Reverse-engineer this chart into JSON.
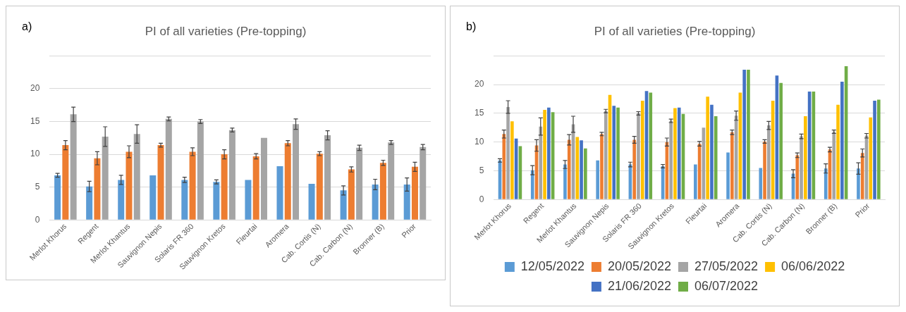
{
  "chart_data": [
    {
      "type": "bar",
      "title": "PI of all varieties (Pre-topping)",
      "annotations": [
        "a)"
      ],
      "categories": [
        "Merlot Khorus",
        "Regent",
        "Merlot Khantus",
        "Sauvignon Nepis",
        "Solaris FR 360",
        "Sauvignon Kretos",
        "Fleurtai",
        "Aromera",
        "Cab. Cortis (N)",
        "Cab. Carbon (N)",
        "Bronner (B)",
        "Prior"
      ],
      "series": [
        {
          "color": "#5b9bd5",
          "values": [
            6.8,
            5.1,
            6.1,
            6.8,
            6.1,
            5.8,
            6.1,
            8.2,
            5.5,
            4.5,
            5.4,
            5.4
          ],
          "errors": [
            0.3,
            0.8,
            0.7,
            null,
            0.4,
            0.3,
            null,
            null,
            null,
            0.7,
            0.8,
            1.0
          ]
        },
        {
          "color": "#ed7d31",
          "values": [
            11.4,
            9.4,
            10.4,
            11.4,
            10.4,
            10.0,
            9.7,
            11.7,
            10.1,
            7.7,
            8.7,
            8.1
          ],
          "errors": [
            0.7,
            1.0,
            0.9,
            0.3,
            0.6,
            0.7,
            0.4,
            0.4,
            0.3,
            0.4,
            0.4,
            0.7
          ]
        },
        {
          "color": "#a5a5a5",
          "values": [
            16.1,
            12.7,
            13.1,
            15.4,
            15.0,
            13.7,
            12.5,
            14.6,
            12.9,
            11.0,
            11.8,
            11.1
          ],
          "errors": [
            1.1,
            1.5,
            1.4,
            0.3,
            0.3,
            0.3,
            null,
            0.8,
            0.7,
            0.4,
            0.3,
            0.4
          ]
        }
      ],
      "ylim": [
        0,
        25
      ],
      "yticks": [
        0,
        5,
        10,
        15,
        20,
        {
          "value": 25,
          "label": null
        }
      ],
      "grid": "y",
      "legend": false
    },
    {
      "type": "bar",
      "title": "PI of all varieties (Pre-topping)",
      "annotations": [
        "b)"
      ],
      "categories": [
        "Merlot Khorus",
        "Regent",
        "Merlot Khantus",
        "Sauvignon Nepis",
        "Solaris FR 360",
        "Sauvignon Kretos",
        "Fleurtai",
        "Aromera",
        "Cab. Cortis (N)",
        "Cab. Carbon (N)",
        "Bronner (B)",
        "Prior"
      ],
      "series": [
        {
          "name": "12/05/2022",
          "color": "#5b9bd5",
          "values": [
            6.8,
            5.1,
            6.1,
            6.8,
            6.1,
            5.8,
            6.1,
            8.2,
            5.5,
            4.5,
            5.4,
            5.4
          ],
          "errors": [
            0.3,
            0.8,
            0.7,
            null,
            0.4,
            0.3,
            null,
            null,
            null,
            0.7,
            0.8,
            1.0
          ]
        },
        {
          "name": "20/05/2022",
          "color": "#ed7d31",
          "values": [
            11.4,
            9.4,
            10.4,
            11.4,
            10.4,
            10.0,
            9.7,
            11.7,
            10.1,
            7.7,
            8.7,
            8.1
          ],
          "errors": [
            0.7,
            1.0,
            0.9,
            0.3,
            0.6,
            0.7,
            0.4,
            0.4,
            0.3,
            0.4,
            0.4,
            0.7
          ]
        },
        {
          "name": "27/05/2022",
          "color": "#a5a5a5",
          "values": [
            16.1,
            12.7,
            13.1,
            15.4,
            15.0,
            13.7,
            12.5,
            14.6,
            12.9,
            11.0,
            11.8,
            11.1
          ],
          "errors": [
            1.1,
            1.5,
            1.4,
            0.3,
            0.3,
            0.3,
            null,
            0.8,
            0.7,
            0.4,
            0.3,
            0.4
          ]
        },
        {
          "name": "06/06/2022",
          "color": "#ffc000",
          "values": [
            13.6,
            15.6,
            10.9,
            18.2,
            17.2,
            15.9,
            17.9,
            18.6,
            17.2,
            14.5,
            16.5,
            14.3
          ]
        },
        {
          "name": "21/06/2022",
          "color": "#4472c4",
          "values": [
            10.6,
            16.0,
            10.3,
            16.3,
            18.9,
            16.0,
            16.5,
            22.6,
            21.6,
            18.8,
            20.5,
            17.2
          ]
        },
        {
          "name": "06/07/2022",
          "color": "#70ad47",
          "values": [
            9.3,
            15.2,
            8.9,
            16.0,
            18.6,
            14.9,
            14.5,
            22.6,
            20.3,
            18.8,
            23.2,
            17.4
          ]
        }
      ],
      "ylim": [
        0,
        25
      ],
      "yticks": [
        0,
        5,
        10,
        15,
        20,
        {
          "value": 25,
          "label": null
        }
      ],
      "grid": "y",
      "legend": "bottom"
    }
  ]
}
